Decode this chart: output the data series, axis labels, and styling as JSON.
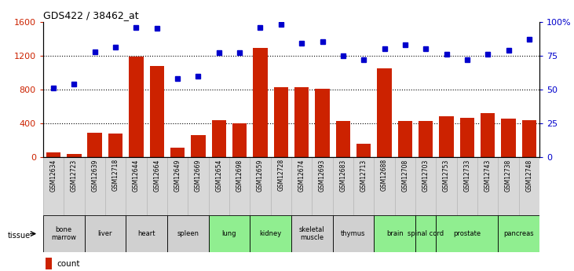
{
  "title": "GDS422 / 38462_at",
  "samples": [
    "GSM12634",
    "GSM12723",
    "GSM12639",
    "GSM12718",
    "GSM12644",
    "GSM12664",
    "GSM12649",
    "GSM12669",
    "GSM12654",
    "GSM12698",
    "GSM12659",
    "GSM12728",
    "GSM12674",
    "GSM12693",
    "GSM12683",
    "GSM12713",
    "GSM12688",
    "GSM12708",
    "GSM12703",
    "GSM12753",
    "GSM12733",
    "GSM12743",
    "GSM12738",
    "GSM12748"
  ],
  "counts": [
    55,
    35,
    290,
    280,
    1185,
    1080,
    110,
    265,
    440,
    400,
    1290,
    830,
    830,
    810,
    430,
    155,
    1050,
    430,
    430,
    480,
    465,
    520,
    455,
    440
  ],
  "percentiles": [
    51,
    54,
    78,
    81,
    96,
    95,
    58,
    60,
    77,
    77,
    96,
    98,
    84,
    85,
    75,
    72,
    80,
    83,
    80,
    76,
    72,
    76,
    79,
    87
  ],
  "tissues": [
    {
      "name": "bone\nmarrow",
      "start": 0,
      "end": 2,
      "color": "#d0d0d0"
    },
    {
      "name": "liver",
      "start": 2,
      "end": 4,
      "color": "#d0d0d0"
    },
    {
      "name": "heart",
      "start": 4,
      "end": 6,
      "color": "#d0d0d0"
    },
    {
      "name": "spleen",
      "start": 6,
      "end": 8,
      "color": "#d0d0d0"
    },
    {
      "name": "lung",
      "start": 8,
      "end": 10,
      "color": "#90ee90"
    },
    {
      "name": "kidney",
      "start": 10,
      "end": 12,
      "color": "#90ee90"
    },
    {
      "name": "skeletal\nmuscle",
      "start": 12,
      "end": 14,
      "color": "#d0d0d0"
    },
    {
      "name": "thymus",
      "start": 14,
      "end": 16,
      "color": "#d0d0d0"
    },
    {
      "name": "brain",
      "start": 16,
      "end": 18,
      "color": "#90ee90"
    },
    {
      "name": "spinal cord",
      "start": 18,
      "end": 19,
      "color": "#90ee90"
    },
    {
      "name": "prostate",
      "start": 19,
      "end": 22,
      "color": "#90ee90"
    },
    {
      "name": "pancreas",
      "start": 22,
      "end": 24,
      "color": "#90ee90"
    }
  ],
  "bar_color": "#cc2200",
  "dot_color": "#0000cc",
  "ylim_left": [
    0,
    1600
  ],
  "ylim_right": [
    0,
    100
  ],
  "yticks_left": [
    0,
    400,
    800,
    1200,
    1600
  ],
  "yticks_right": [
    0,
    25,
    50,
    75,
    100
  ],
  "ytick_labels_right": [
    "0",
    "25",
    "50",
    "75",
    "100%"
  ],
  "hgrid_values": [
    400,
    800,
    1200
  ],
  "xticklabel_bg": "#d8d8d8"
}
